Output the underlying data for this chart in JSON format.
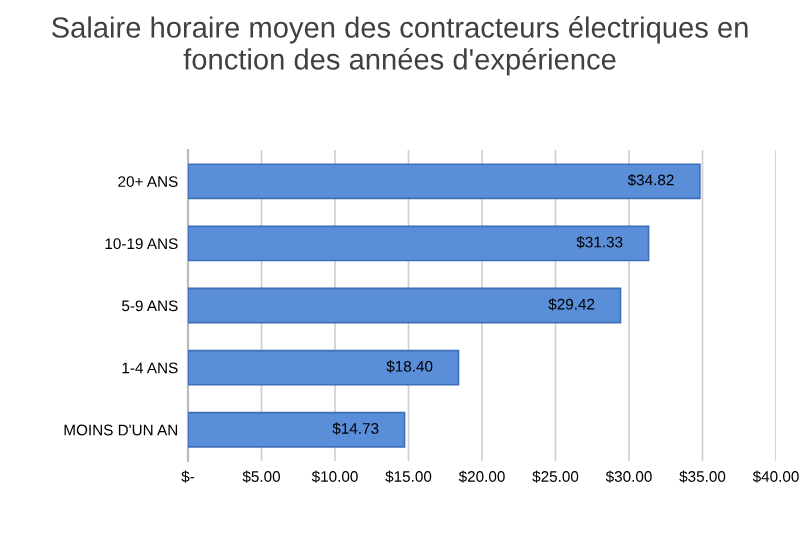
{
  "chart_data": {
    "type": "bar",
    "orientation": "horizontal",
    "title": "Salaire horaire moyen des contracteurs électriques en fonction des années d'expérience",
    "categories": [
      "20+ ANS",
      "10-19 ANS",
      "5-9 ANS",
      "1-4 ANS",
      "MOINS D'UN AN"
    ],
    "values": [
      34.82,
      31.33,
      29.42,
      18.4,
      14.73
    ],
    "value_labels": [
      "$34.82",
      "$31.33",
      "$29.42",
      "$18.40",
      "$14.73"
    ],
    "color": "#5b8ed8",
    "xlim": [
      0,
      40
    ],
    "xticks": [
      {
        "value": 0,
        "label": "$-"
      },
      {
        "value": 5,
        "label": "$5.00"
      },
      {
        "value": 10,
        "label": "$10.00"
      },
      {
        "value": 15,
        "label": "$15.00"
      },
      {
        "value": 20,
        "label": "$20.00"
      },
      {
        "value": 25,
        "label": "$25.00"
      },
      {
        "value": 30,
        "label": "$30.00"
      },
      {
        "value": 35,
        "label": "$35.00"
      },
      {
        "value": 40,
        "label": "$40.00"
      }
    ],
    "grid": "x",
    "legend": false
  }
}
